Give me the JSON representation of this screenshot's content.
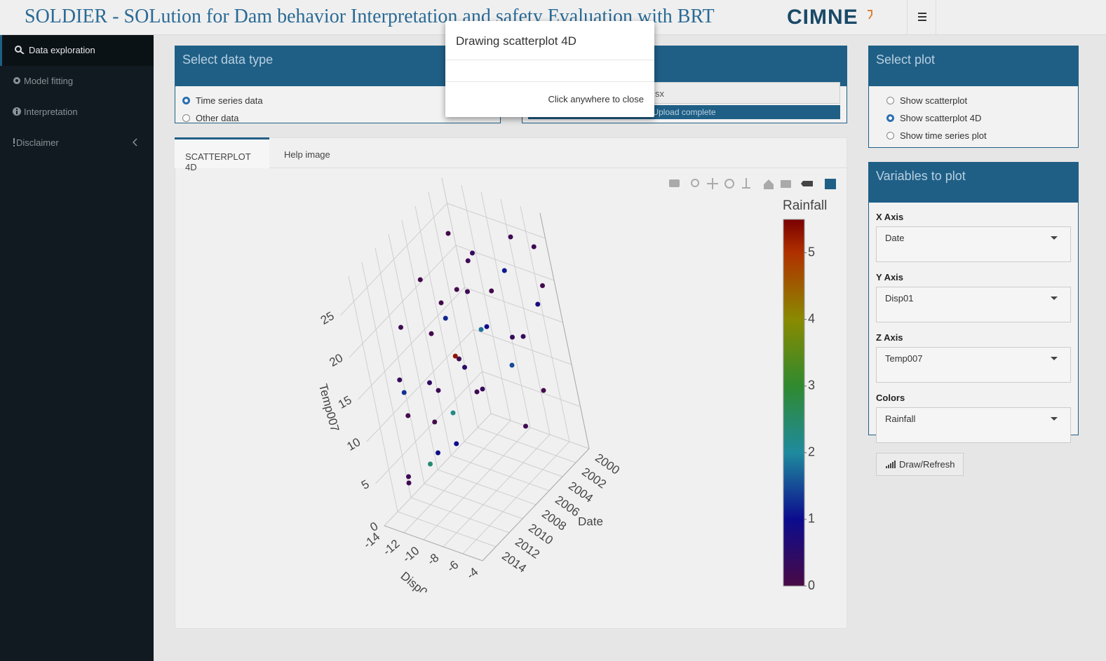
{
  "header": {
    "title": "SOLDIER - SOLution for Dam behavior Interpretation and safety Evaluation with BRT",
    "logo": "CIMNE"
  },
  "sidebar": {
    "items": [
      "Data exploration",
      "Model fitting",
      "Interpretation",
      "Disclaimer"
    ],
    "active": 0
  },
  "data_type_box": {
    "title": "Select data type",
    "options": [
      "Time series data",
      "Other data"
    ],
    "selected": 0
  },
  "upload_box": {
    "file": "sx",
    "progress": "Upload complete"
  },
  "select_plot_box": {
    "title": "Select plot",
    "options": [
      "Show scatterplot",
      "Show scatterplot 4D",
      "Show time series plot"
    ],
    "selected": 1
  },
  "variables_box": {
    "title": "Variables to plot",
    "fields": [
      {
        "label": "X Axis",
        "value": "Date"
      },
      {
        "label": "Y Axis",
        "value": "Disp01"
      },
      {
        "label": "Z Axis",
        "value": "Temp007"
      },
      {
        "label": "Colors",
        "value": "Rainfall"
      }
    ],
    "button": "Draw/Refresh"
  },
  "tabs": [
    "SCATTERPLOT 4D",
    "Help image"
  ],
  "active_tab": 0,
  "modal": {
    "title": "Drawing scatterplot 4D",
    "footer": "Click anywhere to close"
  },
  "chart_data": {
    "type": "scatter3d",
    "x_label": "Date",
    "y_label": "Disp01",
    "z_label": "Temp007",
    "color_label": "Rainfall",
    "xlim": [
      2000,
      2016
    ],
    "xticks": [
      2000,
      2002,
      2004,
      2006,
      2008,
      2010,
      2012,
      2014
    ],
    "ylim": [
      -14,
      -4
    ],
    "yticks": [
      -14,
      -12,
      -10,
      -8,
      -6,
      -4
    ],
    "zlim": [
      0,
      28
    ],
    "zticks": [
      0,
      5,
      10,
      15,
      20,
      25
    ],
    "clim": [
      0,
      5.5
    ],
    "cticks": [
      0,
      1,
      2,
      3,
      4,
      5
    ],
    "colorscale": [
      [
        0,
        "#4a0a45"
      ],
      [
        1,
        "#0c0c8e"
      ],
      [
        2,
        "#1f8a9e"
      ],
      [
        3,
        "#2f8a2f"
      ],
      [
        4,
        "#8a8a00"
      ],
      [
        5,
        "#b03000"
      ],
      [
        5.5,
        "#7a0000"
      ]
    ],
    "x": [
      2000.5,
      2001,
      2001.5,
      2002,
      2002.5,
      2003,
      2003.5,
      2004,
      2004.5,
      2005,
      2005.5,
      2006,
      2006.5,
      2007,
      2007.5,
      2008,
      2008.5,
      2009,
      2009.5,
      2010,
      2010.5,
      2011,
      2011.5,
      2012,
      2012.5,
      2013,
      2013.5,
      2014,
      2003,
      2005,
      2006,
      2008,
      2009,
      2010,
      2011,
      2004,
      2007,
      2012,
      2001,
      2002
    ],
    "y": [
      -5,
      -4.5,
      -5,
      -6,
      -7,
      -6,
      -8,
      -7,
      -9,
      -8,
      -10,
      -9,
      -11,
      -10,
      -12,
      -11,
      -9,
      -12,
      -10,
      -13,
      -11,
      -12,
      -13,
      -10,
      -12,
      -13,
      -11,
      -12,
      -5,
      -6,
      -7,
      -6,
      -7,
      -8,
      -6,
      -11,
      -13,
      -8,
      -9,
      -12
    ],
    "z": [
      24,
      20,
      18,
      26,
      22,
      15,
      20,
      12,
      24,
      17,
      21,
      10,
      18,
      14,
      23,
      8,
      16,
      12,
      6,
      19,
      9,
      4,
      14,
      7,
      11,
      3,
      15,
      5,
      9,
      6,
      27,
      20,
      13,
      24,
      18,
      26,
      9,
      22,
      12,
      17
    ],
    "color": [
      0.2,
      0.1,
      0.8,
      0.2,
      1.1,
      0.3,
      0.1,
      1.5,
      0.2,
      0.9,
      0.1,
      0.3,
      1.2,
      0.2,
      0.1,
      2.2,
      5.3,
      0.4,
      1.0,
      0.2,
      0.1,
      2.4,
      0.3,
      0.9,
      0.1,
      0.2,
      1.3,
      0.2,
      0.1,
      0.2,
      0.3,
      1.8,
      0.2,
      0.1,
      0.5,
      0.1,
      0.2,
      0.1,
      0.3,
      0.2
    ]
  }
}
